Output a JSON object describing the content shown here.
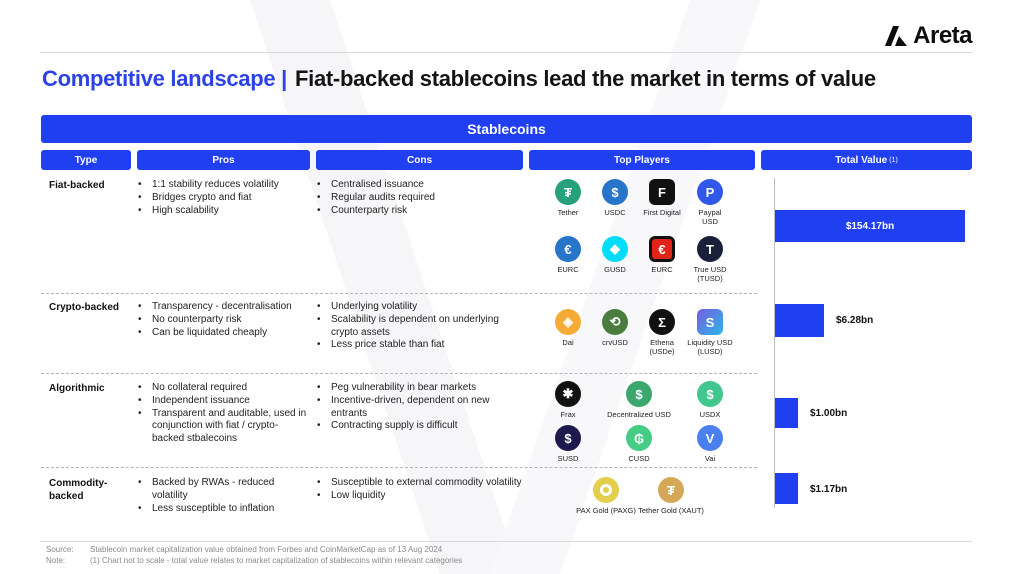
{
  "brand": {
    "name": "Areta"
  },
  "title": {
    "lead": "Competitive landscape |",
    "main": "Fiat-backed stablecoins lead the market in terms of value"
  },
  "banner": "Stablecoins",
  "headers": {
    "type": "Type",
    "pros": "Pros",
    "cons": "Cons",
    "players": "Top Players",
    "value": "Total Value",
    "value_note": "(1)"
  },
  "rows": [
    {
      "type": "Fiat-backed",
      "pros": [
        "1:1 stability reduces volatility",
        "Bridges crypto and fiat",
        "High scalability"
      ],
      "cons": [
        "Centralised issuance",
        "Regular audits required",
        "Counterparty risk"
      ],
      "players": [
        "Tether",
        "USDC",
        "First Digital",
        "Paypal USD",
        "EURC",
        "GUSD",
        "EURC",
        "True USD (TUSD)"
      ],
      "total_value": "$154.17bn"
    },
    {
      "type": "Crypto-backed",
      "pros": [
        "Transparency - decentralisation",
        "No counterparty risk",
        "Can be liquidated cheaply"
      ],
      "cons": [
        "Underlying volatility",
        "Scalability is dependent on underlying crypto assets",
        "Less price stable than fiat"
      ],
      "players": [
        "Dai",
        "crvUSD",
        "Ethena (USDe)",
        "Liquidity USD (LUSD)"
      ],
      "total_value": "$6.28bn"
    },
    {
      "type": "Algorithmic",
      "pros": [
        "No collateral required",
        "Independent issuance",
        "Transparent and auditable, used in conjunction with fiat / crypto-backed stbalecoins"
      ],
      "cons": [
        "Peg vulnerability in bear markets",
        "Incentive-driven, dependent on new entrants",
        "Contracting supply is difficult"
      ],
      "players": [
        "Frax",
        "Decentralized USD",
        "USDX",
        "SUSD",
        "CUSD",
        "Vai"
      ],
      "total_value": "$1.00bn"
    },
    {
      "type": "Commodity-backed",
      "pros": [
        "Backed by RWAs - reduced volatility",
        "Less susceptible to inflation"
      ],
      "cons": [
        "Susceptible to external commodity volatility",
        "Low liquidity"
      ],
      "players": [
        "PAX Gold (PAXG)",
        "Tether Gold (XAUT)"
      ],
      "total_value": "$1.17bn"
    }
  ],
  "value_shares": [
    1.0,
    0.26,
    0.12,
    0.12
  ],
  "footer": {
    "source_key": "Source:",
    "source_text": "Stablecoin market capitalization value obtained from Forbes and CoinMarketCap as of 13 Aug 2024",
    "note_key": "Note:",
    "note_text": "(1) Chart not to scale - total value relates to market capitalization of stablecoins within relevant categories"
  },
  "colors": {
    "accent": "#1f3ff0",
    "title_blue": "#2c42e8"
  }
}
